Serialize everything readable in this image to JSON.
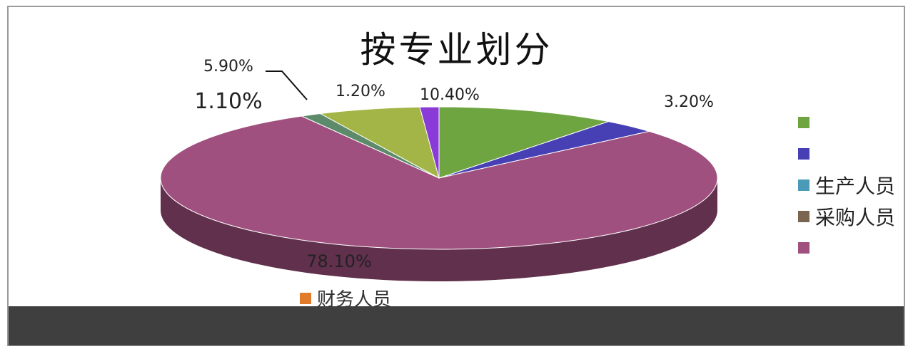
{
  "chart_data": {
    "type": "pie",
    "title": "按专业划分",
    "series": [
      {
        "label": "",
        "value": 10.4,
        "display": "10.40%",
        "color": "#6ea541"
      },
      {
        "label": "",
        "value": 3.2,
        "display": "3.20%",
        "color": "#4640b4"
      },
      {
        "label": "生产人员",
        "value": 0,
        "display": "",
        "color": "#4a9bb8"
      },
      {
        "label": "采购人员",
        "value": 0,
        "display": "",
        "color": "#7a6650"
      },
      {
        "label": "",
        "value": 78.1,
        "display": "78.10%",
        "color": "#a0507f"
      },
      {
        "label": "",
        "value": 1.2,
        "display": "1.20%",
        "color": "#5c8a6a"
      },
      {
        "label": "",
        "value": 5.9,
        "display": "5.90%",
        "color": "#a3b546"
      },
      {
        "label": "",
        "value": 1.1,
        "display": "1.10%",
        "color": "#8a3ad6"
      }
    ],
    "legend_position": "right",
    "legend_labels": [
      "",
      "",
      "生产人员",
      "采购人员",
      ""
    ],
    "extra_legend_label": "财务人员",
    "extra_legend_color": "#e07b2c"
  }
}
